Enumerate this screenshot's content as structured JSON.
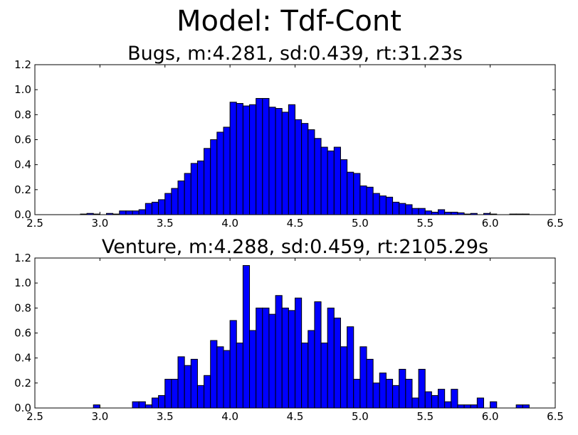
{
  "figure": {
    "suptitle": "Model: Tdf-Cont"
  },
  "colors": {
    "bar_fill": "#0000ff",
    "bar_edge": "#000000",
    "axes_edge": "#000000",
    "background": "#ffffff"
  },
  "chart_data": [
    {
      "type": "bar",
      "title": "Bugs,  m:4.281,  sd:0.439,  rt:31.23s",
      "xlabel": "",
      "ylabel": "",
      "xlim": [
        2.5,
        6.5
      ],
      "ylim": [
        0,
        1.2
      ],
      "xticks": [
        "2.5",
        "3.0",
        "3.5",
        "4.0",
        "4.5",
        "5.0",
        "5.5",
        "6.0",
        "6.5"
      ],
      "yticks": [
        "0.0",
        "0.2",
        "0.4",
        "0.6",
        "0.8",
        "1.0",
        "1.2"
      ],
      "grid": false,
      "bin_width": 0.05,
      "bins": [
        [
          2.85,
          0.005
        ],
        [
          2.9,
          0.01
        ],
        [
          2.95,
          0.005
        ],
        [
          3.05,
          0.01
        ],
        [
          3.1,
          0.005
        ],
        [
          3.15,
          0.03
        ],
        [
          3.2,
          0.03
        ],
        [
          3.25,
          0.03
        ],
        [
          3.3,
          0.04
        ],
        [
          3.35,
          0.09
        ],
        [
          3.4,
          0.1
        ],
        [
          3.45,
          0.12
        ],
        [
          3.5,
          0.17
        ],
        [
          3.55,
          0.21
        ],
        [
          3.6,
          0.27
        ],
        [
          3.65,
          0.33
        ],
        [
          3.7,
          0.41
        ],
        [
          3.75,
          0.43
        ],
        [
          3.8,
          0.53
        ],
        [
          3.85,
          0.6
        ],
        [
          3.9,
          0.66
        ],
        [
          3.95,
          0.7
        ],
        [
          4.0,
          0.9
        ],
        [
          4.05,
          0.89
        ],
        [
          4.1,
          0.87
        ],
        [
          4.15,
          0.88
        ],
        [
          4.2,
          0.93
        ],
        [
          4.25,
          0.93
        ],
        [
          4.3,
          0.86
        ],
        [
          4.35,
          0.85
        ],
        [
          4.4,
          0.82
        ],
        [
          4.45,
          0.88
        ],
        [
          4.5,
          0.76
        ],
        [
          4.55,
          0.73
        ],
        [
          4.6,
          0.68
        ],
        [
          4.65,
          0.61
        ],
        [
          4.7,
          0.54
        ],
        [
          4.75,
          0.51
        ],
        [
          4.8,
          0.54
        ],
        [
          4.85,
          0.44
        ],
        [
          4.9,
          0.34
        ],
        [
          4.95,
          0.33
        ],
        [
          5.0,
          0.23
        ],
        [
          5.05,
          0.22
        ],
        [
          5.1,
          0.17
        ],
        [
          5.15,
          0.15
        ],
        [
          5.2,
          0.14
        ],
        [
          5.25,
          0.1
        ],
        [
          5.3,
          0.09
        ],
        [
          5.35,
          0.08
        ],
        [
          5.4,
          0.05
        ],
        [
          5.45,
          0.05
        ],
        [
          5.5,
          0.03
        ],
        [
          5.55,
          0.02
        ],
        [
          5.6,
          0.04
        ],
        [
          5.65,
          0.02
        ],
        [
          5.7,
          0.02
        ],
        [
          5.75,
          0.015
        ],
        [
          5.8,
          0.005
        ],
        [
          5.85,
          0.01
        ],
        [
          5.95,
          0.01
        ],
        [
          6.0,
          0.005
        ],
        [
          6.15,
          0.005
        ],
        [
          6.2,
          0.005
        ],
        [
          6.25,
          0.005
        ]
      ]
    },
    {
      "type": "bar",
      "title": "Venture,  m:4.288,  sd:0.459,  rt:2105.29s",
      "xlabel": "",
      "ylabel": "",
      "xlim": [
        2.5,
        6.5
      ],
      "ylim": [
        0,
        1.2
      ],
      "xticks": [
        "2.5",
        "3.0",
        "3.5",
        "4.0",
        "4.5",
        "5.0",
        "5.5",
        "6.0",
        "6.5"
      ],
      "yticks": [
        "0.0",
        "0.2",
        "0.4",
        "0.6",
        "0.8",
        "1.0",
        "1.2"
      ],
      "grid": false,
      "bin_width": 0.05,
      "bins": [
        [
          2.95,
          0.025
        ],
        [
          3.25,
          0.05
        ],
        [
          3.3,
          0.05
        ],
        [
          3.35,
          0.025
        ],
        [
          3.4,
          0.08
        ],
        [
          3.45,
          0.1
        ],
        [
          3.5,
          0.23
        ],
        [
          3.55,
          0.23
        ],
        [
          3.6,
          0.41
        ],
        [
          3.65,
          0.34
        ],
        [
          3.7,
          0.39
        ],
        [
          3.75,
          0.18
        ],
        [
          3.8,
          0.26
        ],
        [
          3.85,
          0.54
        ],
        [
          3.9,
          0.49
        ],
        [
          3.95,
          0.46
        ],
        [
          4.0,
          0.7
        ],
        [
          4.05,
          0.52
        ],
        [
          4.1,
          1.14
        ],
        [
          4.15,
          0.62
        ],
        [
          4.2,
          0.8
        ],
        [
          4.25,
          0.8
        ],
        [
          4.3,
          0.75
        ],
        [
          4.35,
          0.9
        ],
        [
          4.4,
          0.8
        ],
        [
          4.45,
          0.78
        ],
        [
          4.5,
          0.88
        ],
        [
          4.55,
          0.52
        ],
        [
          4.6,
          0.62
        ],
        [
          4.65,
          0.85
        ],
        [
          4.7,
          0.52
        ],
        [
          4.75,
          0.8
        ],
        [
          4.8,
          0.72
        ],
        [
          4.85,
          0.49
        ],
        [
          4.9,
          0.65
        ],
        [
          4.95,
          0.23
        ],
        [
          5.0,
          0.49
        ],
        [
          5.05,
          0.39
        ],
        [
          5.1,
          0.2
        ],
        [
          5.15,
          0.28
        ],
        [
          5.2,
          0.23
        ],
        [
          5.25,
          0.18
        ],
        [
          5.3,
          0.31
        ],
        [
          5.35,
          0.23
        ],
        [
          5.4,
          0.08
        ],
        [
          5.45,
          0.31
        ],
        [
          5.5,
          0.13
        ],
        [
          5.55,
          0.1
        ],
        [
          5.6,
          0.15
        ],
        [
          5.65,
          0.05
        ],
        [
          5.7,
          0.15
        ],
        [
          5.75,
          0.025
        ],
        [
          5.8,
          0.025
        ],
        [
          5.85,
          0.025
        ],
        [
          5.9,
          0.08
        ],
        [
          6.0,
          0.05
        ],
        [
          6.2,
          0.025
        ],
        [
          6.25,
          0.025
        ]
      ]
    }
  ]
}
